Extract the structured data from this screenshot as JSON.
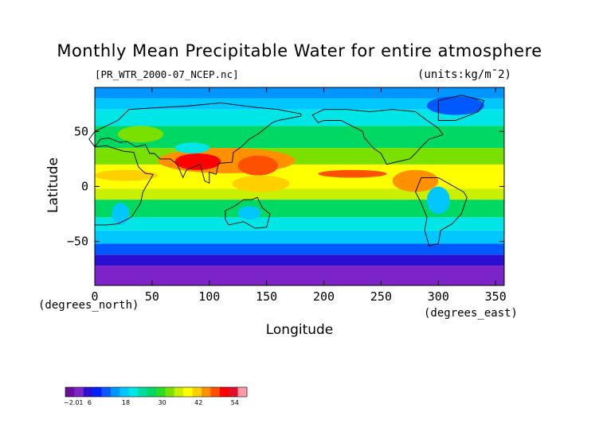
{
  "chart_data": {
    "type": "heatmap",
    "title": "Monthly Mean Precipitable Water for entire atmosphere",
    "subtitle_left": "[PR_WTR_2000-07_NCEP.nc]",
    "subtitle_right": "(units:kg/m¯2)",
    "xlabel": "Longitude",
    "ylabel": "Latitude",
    "x_unit_label": "(degrees_east)",
    "y_unit_label": "(degrees_north)",
    "xlim": [
      0,
      357.5
    ],
    "ylim": [
      -90,
      90
    ],
    "x_ticks": [
      0,
      50,
      100,
      150,
      200,
      250,
      300,
      350
    ],
    "y_ticks": [
      50,
      0,
      -50
    ],
    "y_tick_labels": [
      "50",
      "0",
      "−50"
    ],
    "color_scale": {
      "min": -2.01,
      "labels": [
        "−2.01",
        "6",
        "18",
        "30",
        "42",
        "54"
      ],
      "label_values": [
        -2.01,
        6,
        18,
        30,
        42,
        54
      ],
      "colors": [
        "#6b0f9a",
        "#7d24c8",
        "#2a0fd0",
        "#0020ff",
        "#0a58ff",
        "#0095ff",
        "#00c8ff",
        "#00e6e6",
        "#00dca0",
        "#00d864",
        "#28dc28",
        "#7ae000",
        "#c8f000",
        "#ffff00",
        "#ffd000",
        "#ff9000",
        "#ff5000",
        "#ff0000",
        "#e0102a",
        "#ff9aa6"
      ]
    },
    "zonal_bands": [
      {
        "lat": [
          -90,
          -72
        ],
        "color": "#7d24c8"
      },
      {
        "lat": [
          -72,
          -62
        ],
        "color": "#2a0fd0"
      },
      {
        "lat": [
          -62,
          -52
        ],
        "color": "#0058ff"
      },
      {
        "lat": [
          -52,
          -40
        ],
        "color": "#00c8ff"
      },
      {
        "lat": [
          -40,
          -28
        ],
        "color": "#00e6e6"
      },
      {
        "lat": [
          -28,
          -12
        ],
        "color": "#00d864"
      },
      {
        "lat": [
          -12,
          -2
        ],
        "color": "#c8f000"
      },
      {
        "lat": [
          -2,
          20
        ],
        "color": "#ffff00"
      },
      {
        "lat": [
          20,
          35
        ],
        "color": "#7ae000"
      },
      {
        "lat": [
          35,
          55
        ],
        "color": "#00d864"
      },
      {
        "lat": [
          55,
          70
        ],
        "color": "#00e6e6"
      },
      {
        "lat": [
          70,
          80
        ],
        "color": "#00c8ff"
      },
      {
        "lat": [
          80,
          90
        ],
        "color": "#0095ff"
      }
    ],
    "regions": [
      {
        "lon": [
          55,
          175
        ],
        "lat": [
          12,
          35
        ],
        "color": "#ff9000"
      },
      {
        "lon": [
          70,
          110
        ],
        "lat": [
          15,
          30
        ],
        "color": "#ff0000"
      },
      {
        "lon": [
          125,
          160
        ],
        "lat": [
          10,
          28
        ],
        "color": "#ff5000"
      },
      {
        "lon": [
          120,
          170
        ],
        "lat": [
          -5,
          10
        ],
        "color": "#ffd000"
      },
      {
        "lon": [
          195,
          255
        ],
        "lat": [
          8,
          15
        ],
        "color": "#ff5000"
      },
      {
        "lon": [
          260,
          300
        ],
        "lat": [
          -5,
          15
        ],
        "color": "#ff9000"
      },
      {
        "lon": [
          0,
          55
        ],
        "lat": [
          5,
          15
        ],
        "color": "#ffd000"
      },
      {
        "lon": [
          290,
          310
        ],
        "lat": [
          -25,
          0
        ],
        "color": "#00c8ff"
      },
      {
        "lon": [
          15,
          30
        ],
        "lat": [
          -35,
          -15
        ],
        "color": "#00c8ff"
      },
      {
        "lon": [
          125,
          145
        ],
        "lat": [
          -30,
          -18
        ],
        "color": "#00c8ff"
      },
      {
        "lon": [
          20,
          60
        ],
        "lat": [
          40,
          55
        ],
        "color": "#7ae000"
      },
      {
        "lon": [
          290,
          340
        ],
        "lat": [
          65,
          82
        ],
        "color": "#0058ff"
      },
      {
        "lon": [
          70,
          100
        ],
        "lat": [
          30,
          40
        ],
        "color": "#00e6e6"
      }
    ]
  }
}
